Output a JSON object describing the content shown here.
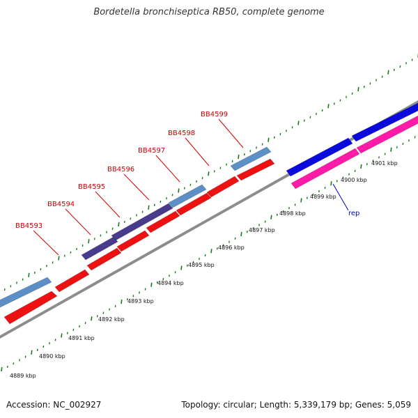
{
  "title": "Bordetella bronchiseptica RB50, complete genome",
  "accession": "Accession: NC_002927",
  "summary": "Topology: circular; Length: 5,339,179 bp; Genes: 5,059",
  "colors": {
    "backbone": "#8c8c8c",
    "tick": "#1a7a1a",
    "gene_red": "#ee1111",
    "gene_red_dark": "#b00000",
    "gene_blue": "#5b8fc6",
    "gene_purple": "#4a3a8c",
    "gene_navy": "#0a0adc",
    "gene_pink": "#ff1aa8",
    "label_red": "#cc0000",
    "label_blue": "#0000cc",
    "scale_text": "#111111"
  },
  "scale_labels": [
    "4889 kbp",
    "4890 kbp",
    "4891 kbp",
    "4892 kbp",
    "4893 kbp",
    "4894 kbp",
    "4895 kbp",
    "4896 kbp",
    "4897 kbp",
    "4898 kbp",
    "4899 kbp",
    "4900 kbp",
    "4901 kbp"
  ],
  "gene_labels": [
    {
      "name": "BB4593",
      "color": "red"
    },
    {
      "name": "BB4594",
      "color": "red"
    },
    {
      "name": "BB4595",
      "color": "red"
    },
    {
      "name": "BB4596",
      "color": "red"
    },
    {
      "name": "BB4597",
      "color": "red"
    },
    {
      "name": "BB4598",
      "color": "red"
    },
    {
      "name": "BB4599",
      "color": "red"
    },
    {
      "name": "rep",
      "color": "blue"
    }
  ]
}
